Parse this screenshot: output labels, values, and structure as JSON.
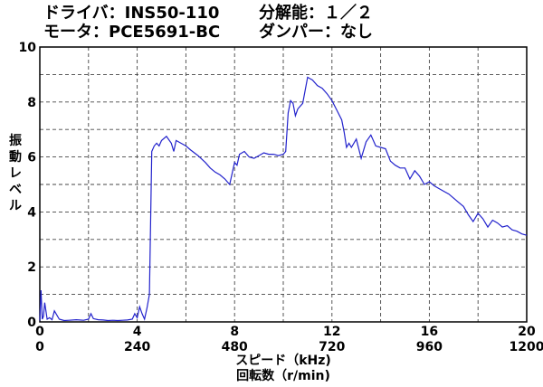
{
  "header": {
    "driver_label": "ドライバ：INS50-110",
    "motor_label": "モータ：PCE5691-BC",
    "resolution_label": "分解能：１／２",
    "damper_label": "ダンパー：なし"
  },
  "chart_data": {
    "type": "line",
    "title": "",
    "ylabel": "振動レベル",
    "xlabel": "スピード（kHz)",
    "xlabel2": "回転数（r/min)",
    "xlim": [
      0,
      20
    ],
    "ylim": [
      0,
      10
    ],
    "x_ticks": [
      "0",
      "4",
      "8",
      "12",
      "16",
      "20"
    ],
    "x2_ticks": [
      "0",
      "240",
      "480",
      "720",
      "960",
      "1200"
    ],
    "y_ticks": [
      "0",
      "2",
      "4",
      "6",
      "8",
      "10"
    ],
    "grid": true,
    "line_color": "#2222cc",
    "series": [
      {
        "x": [
          0,
          0.05,
          0.1,
          0.15,
          0.2,
          0.3,
          0.4,
          0.5,
          0.6,
          0.8,
          1.0,
          1.2,
          1.5,
          1.8,
          2.0,
          2.1,
          2.2,
          2.4,
          2.6,
          2.8,
          3.0,
          3.2,
          3.4,
          3.6,
          3.8,
          3.9,
          4.0,
          4.1,
          4.2,
          4.3,
          4.4,
          4.5,
          4.6,
          4.7,
          4.8,
          4.9,
          5.0,
          5.2,
          5.4,
          5.5,
          5.6,
          5.8,
          6.0,
          6.2,
          6.5,
          6.8,
          7.0,
          7.2,
          7.4,
          7.6,
          7.7,
          7.8,
          7.9,
          8.0,
          8.1,
          8.2,
          8.4,
          8.6,
          8.8,
          9.0,
          9.2,
          9.4,
          9.6,
          9.8,
          10.0,
          10.1,
          10.2,
          10.3,
          10.4,
          10.5,
          10.6,
          10.8,
          11.0,
          11.1,
          11.2,
          11.4,
          11.6,
          11.8,
          12.0,
          12.2,
          12.4,
          12.5,
          12.6,
          12.7,
          12.8,
          13.0,
          13.2,
          13.4,
          13.6,
          13.8,
          14.0,
          14.2,
          14.4,
          14.6,
          14.8,
          15.0,
          15.2,
          15.4,
          15.6,
          15.8,
          16.0,
          16.2,
          16.4,
          16.6,
          16.8,
          17.0,
          17.2,
          17.4,
          17.6,
          17.8,
          18.0,
          18.2,
          18.4,
          18.6,
          18.8,
          19.0,
          19.2,
          19.4,
          19.6,
          19.8,
          20.0
        ],
        "y": [
          0.05,
          1.15,
          0.1,
          0.2,
          0.7,
          0.1,
          0.15,
          0.08,
          0.4,
          0.1,
          0.05,
          0.06,
          0.08,
          0.06,
          0.1,
          0.3,
          0.12,
          0.08,
          0.07,
          0.05,
          0.06,
          0.05,
          0.06,
          0.07,
          0.1,
          0.3,
          0.15,
          0.55,
          0.3,
          0.1,
          0.5,
          1.0,
          6.2,
          6.4,
          6.5,
          6.4,
          6.6,
          6.75,
          6.5,
          6.2,
          6.6,
          6.5,
          6.4,
          6.25,
          6.05,
          5.8,
          5.6,
          5.45,
          5.35,
          5.2,
          5.1,
          5.0,
          5.4,
          5.8,
          5.7,
          6.1,
          6.2,
          6.0,
          5.95,
          6.05,
          6.15,
          6.1,
          6.1,
          6.05,
          6.1,
          6.2,
          7.6,
          8.05,
          7.95,
          7.5,
          7.75,
          7.95,
          8.9,
          8.85,
          8.8,
          8.6,
          8.5,
          8.3,
          8.05,
          7.7,
          7.35,
          6.9,
          6.35,
          6.5,
          6.35,
          6.65,
          5.95,
          6.55,
          6.8,
          6.4,
          6.35,
          6.3,
          5.85,
          5.7,
          5.6,
          5.6,
          5.2,
          5.5,
          5.3,
          5.0,
          5.1,
          4.95,
          4.85,
          4.75,
          4.65,
          4.5,
          4.35,
          4.2,
          3.9,
          3.65,
          3.95,
          3.75,
          3.45,
          3.7,
          3.6,
          3.45,
          3.5,
          3.35,
          3.3,
          3.2,
          3.15
        ]
      }
    ]
  }
}
